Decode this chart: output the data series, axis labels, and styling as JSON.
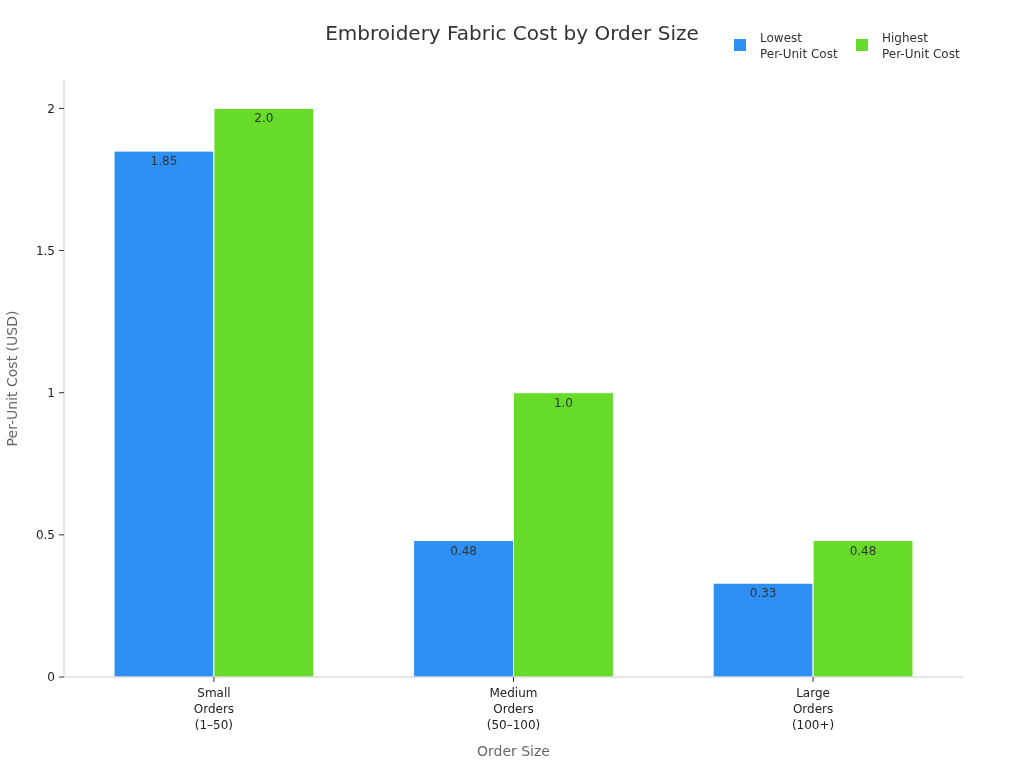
{
  "chart_data": {
    "type": "bar",
    "title": "Embroidery Fabric Cost by Order Size",
    "xlabel": "Order Size",
    "ylabel": "Per-Unit Cost (USD)",
    "categories": [
      "Small\nOrders\n(1–50)",
      "Medium\nOrders\n(50–100)",
      "Large\nOrders\n(100+)"
    ],
    "series": [
      {
        "name": "Lowest\nPer-Unit Cost",
        "color": "#2e90f5",
        "values": [
          1.85,
          0.48,
          0.33
        ],
        "value_labels": [
          "1.85",
          "0.48",
          "0.33"
        ]
      },
      {
        "name": "Highest\nPer-Unit Cost",
        "color": "#66db2a",
        "values": [
          2.0,
          1.0,
          0.48
        ],
        "value_labels": [
          "2.0",
          "1.0",
          "0.48"
        ]
      }
    ],
    "ylim": [
      0,
      2.1
    ],
    "yticks": [
      0,
      0.5,
      1,
      1.5,
      2
    ],
    "grid": false,
    "legend": "top right"
  }
}
